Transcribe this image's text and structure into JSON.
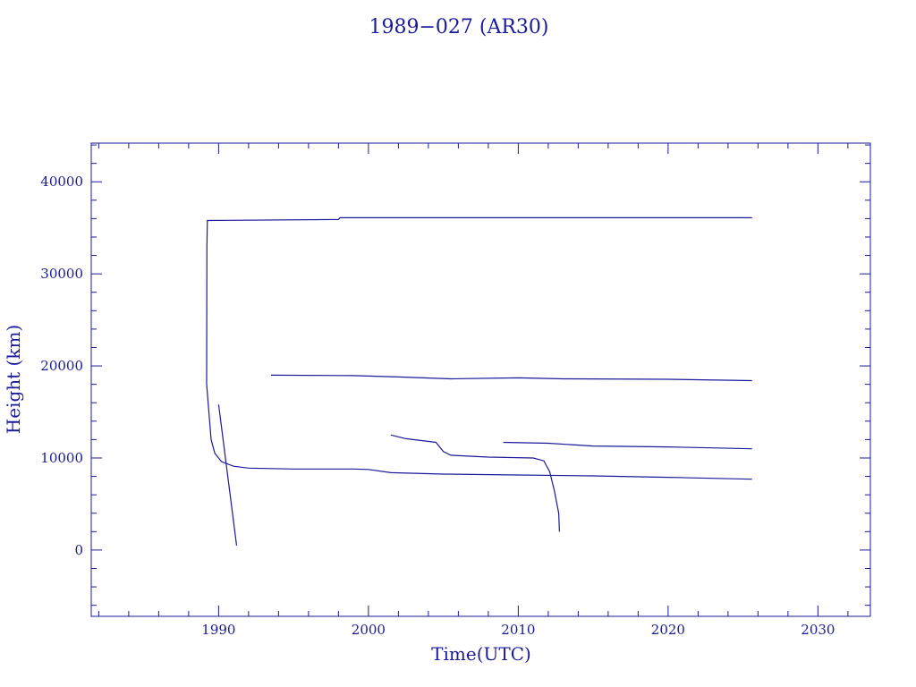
{
  "chart_data": {
    "type": "line",
    "title": "1989−027 (AR30)",
    "xlabel": "Time(UTC)",
    "ylabel": "Height (km)",
    "xlim": [
      1981.5,
      2033.5
    ],
    "ylim": [
      -7200,
      44200
    ],
    "x_major_ticks": [
      1990,
      2000,
      2010,
      2020,
      2030
    ],
    "x_tick_labels": [
      "1990",
      "2000",
      "2010",
      "2020",
      "2030"
    ],
    "x_minor_step": 2,
    "y_major_ticks": [
      0,
      10000,
      20000,
      30000,
      40000
    ],
    "y_tick_labels": [
      "0",
      "10000",
      "20000",
      "30000",
      "40000"
    ],
    "y_minor_step": 2000,
    "grid": false,
    "color": "#1a1a9a",
    "series": [
      {
        "points": [
          [
            1989.2,
            18000
          ],
          [
            1989.22,
            33000
          ],
          [
            1989.25,
            35800
          ],
          [
            1998.0,
            35900
          ],
          [
            1998.1,
            36100
          ],
          [
            2025.6,
            36100
          ]
        ]
      },
      {
        "points": [
          [
            1989.2,
            18000
          ],
          [
            1989.35,
            15000
          ],
          [
            1989.5,
            12000
          ],
          [
            1989.75,
            10500
          ],
          [
            1990.2,
            9600
          ],
          [
            1991.0,
            9100
          ],
          [
            1992.0,
            8900
          ],
          [
            1995.0,
            8800
          ],
          [
            1999.0,
            8800
          ],
          [
            2000.0,
            8750
          ],
          [
            2001.5,
            8400
          ],
          [
            2005.0,
            8250
          ],
          [
            2010.0,
            8150
          ],
          [
            2015.0,
            8050
          ],
          [
            2020.0,
            7900
          ],
          [
            2025.6,
            7700
          ]
        ]
      },
      {
        "points": [
          [
            1990.0,
            15800
          ],
          [
            1991.2,
            500
          ]
        ]
      },
      {
        "points": [
          [
            1993.5,
            19000
          ],
          [
            1999.0,
            18950
          ],
          [
            2002.0,
            18800
          ],
          [
            2005.5,
            18600
          ],
          [
            2010.0,
            18700
          ],
          [
            2013.0,
            18600
          ],
          [
            2020.0,
            18550
          ],
          [
            2025.6,
            18400
          ]
        ]
      },
      {
        "points": [
          [
            2001.5,
            12500
          ],
          [
            2002.5,
            12100
          ],
          [
            2004.5,
            11700
          ],
          [
            2005.0,
            10700
          ],
          [
            2005.5,
            10300
          ],
          [
            2008.0,
            10100
          ],
          [
            2011.0,
            10000
          ],
          [
            2011.7,
            9700
          ],
          [
            2012.1,
            8500
          ],
          [
            2012.4,
            6500
          ],
          [
            2012.7,
            4000
          ],
          [
            2012.75,
            2000
          ]
        ]
      },
      {
        "points": [
          [
            2009.0,
            11700
          ],
          [
            2012.0,
            11600
          ],
          [
            2015.0,
            11300
          ],
          [
            2020.0,
            11200
          ],
          [
            2025.6,
            11000
          ]
        ]
      }
    ]
  }
}
